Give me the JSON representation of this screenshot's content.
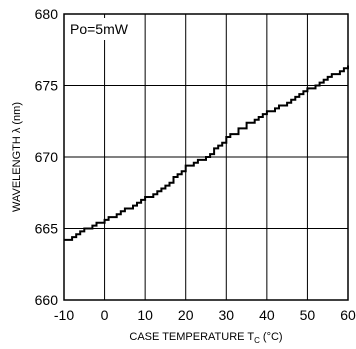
{
  "chart_data": {
    "type": "line",
    "annotation": "Po=5mW",
    "xlabel_main": "CASE TEMPERATURE T",
    "xlabel_sub": "C",
    "xlabel_unit": " (°C)",
    "ylabel": "WAVELENGTH λ (nm)",
    "xlim": [
      -10,
      60
    ],
    "ylim": [
      660,
      680
    ],
    "x_ticks": [
      "-10",
      "0",
      "10",
      "20",
      "30",
      "40",
      "50",
      "60"
    ],
    "y_ticks": [
      "660",
      "665",
      "670",
      "675",
      "680"
    ],
    "grid": true,
    "line_style": "step",
    "series": [
      {
        "x": [
          -10,
          -5,
          0,
          5,
          10,
          15,
          20,
          25,
          30,
          35,
          40,
          45,
          50,
          55,
          60
        ],
        "y": [
          664.1,
          664.9,
          665.6,
          666.3,
          667.1,
          668.0,
          669.3,
          670.0,
          671.3,
          672.3,
          673.1,
          673.8,
          674.7,
          675.6,
          676.3
        ]
      }
    ]
  }
}
